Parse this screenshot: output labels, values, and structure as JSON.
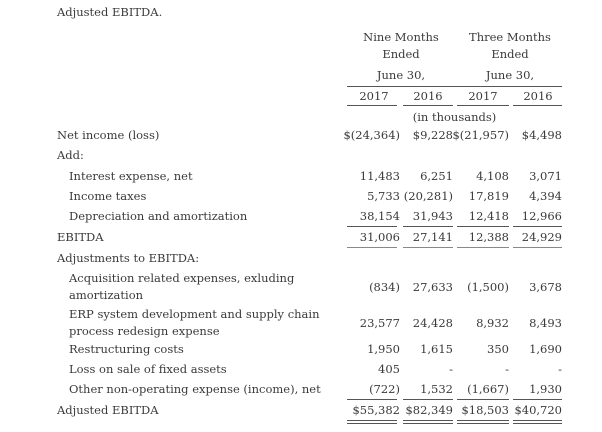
{
  "caption": "Adjusted EBITDA.",
  "header": {
    "group1": [
      "Nine Months",
      "Ended",
      "June 30,"
    ],
    "group2": [
      "Three Months",
      "Ended",
      "June 30,"
    ],
    "years": [
      "2017",
      "2016",
      "2017",
      "2016"
    ],
    "units": "(in thousands)"
  },
  "rows": {
    "net_income": {
      "label": "Net income (loss)",
      "values": [
        "$(24,364)",
        "$9,228",
        "$(21,957)",
        "$4,498"
      ]
    },
    "add": {
      "label": "Add:"
    },
    "interest": {
      "label": "Interest expense, net",
      "values": [
        "11,483",
        "6,251",
        "4,108",
        "3,071"
      ]
    },
    "taxes": {
      "label": "Income taxes",
      "values": [
        "5,733",
        "(20,281)",
        "17,819",
        "4,394"
      ]
    },
    "depreciation": {
      "label": "Depreciation and amortization",
      "values": [
        "38,154",
        "31,943",
        "12,418",
        "12,966"
      ]
    },
    "ebitda": {
      "label": "EBITDA",
      "values": [
        "31,006",
        "27,141",
        "12,388",
        "24,929"
      ]
    },
    "adjustments": {
      "label": "Adjustments to EBITDA:"
    },
    "acquisition": {
      "label": "Acquisition related expenses, exluding amortization",
      "values": [
        "(834)",
        "27,633",
        "(1,500)",
        "3,678"
      ]
    },
    "erp": {
      "label": "ERP system development and supply chain process redesign expense",
      "values": [
        "23,577",
        "24,428",
        "8,932",
        "8,493"
      ]
    },
    "restructuring": {
      "label": "Restructuring costs",
      "values": [
        "1,950",
        "1,615",
        "350",
        "1,690"
      ]
    },
    "loss_sale": {
      "label": "Loss on sale of fixed assets",
      "values": [
        "405",
        "-",
        "-",
        "-"
      ]
    },
    "other": {
      "label": "Other non-operating expense (income), net",
      "values": [
        "(722)",
        "1,532",
        "(1,667)",
        "1,930"
      ]
    },
    "adjusted_ebitda": {
      "label": "Adjusted EBITDA",
      "values": [
        "$55,382",
        "$82,349",
        "$18,503",
        "$40,720"
      ]
    }
  }
}
